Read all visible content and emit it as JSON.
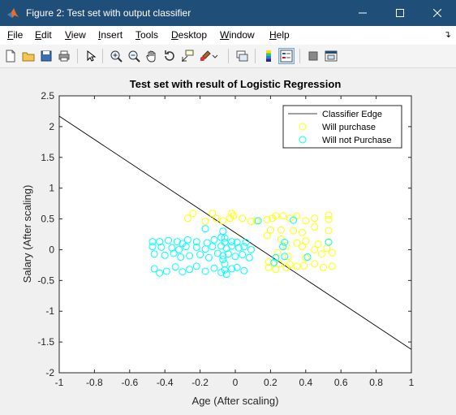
{
  "window": {
    "title": "Figure 2: Test set with output classifier",
    "controls": [
      "minimize",
      "maximize",
      "close"
    ]
  },
  "menu": [
    {
      "label": "File",
      "key": "F",
      "rest": "ile"
    },
    {
      "label": "Edit",
      "key": "E",
      "rest": "dit"
    },
    {
      "label": "View",
      "key": "V",
      "rest": "iew"
    },
    {
      "label": "Insert",
      "key": "I",
      "rest": "nsert"
    },
    {
      "label": "Tools",
      "key": "T",
      "rest": "ools"
    },
    {
      "label": "Desktop",
      "key": "D",
      "rest": "esktop"
    },
    {
      "label": "Window",
      "key": "W",
      "rest": "indow"
    },
    {
      "label": "Help",
      "key": "H",
      "rest": "elp"
    }
  ],
  "toolbar": {
    "icons": [
      "new-figure-icon",
      "open-file-icon",
      "save-icon",
      "print-icon",
      "select-arrow-icon",
      "zoom-in-icon",
      "zoom-out-icon",
      "pan-hand-icon",
      "rotate-3d-icon",
      "data-cursor-icon",
      "brush-icon",
      "link-icon",
      "colorbar-icon",
      "legend-icon",
      "hide-plot-tools-icon",
      "show-plot-tools-icon"
    ]
  },
  "colors": {
    "titlebar": "#1f4e79",
    "yellow": "#ffff00",
    "cyan": "#00ffff",
    "line": "#000000"
  },
  "chart_data": {
    "type": "scatter",
    "title": "Test set with result of Logistic Regression",
    "xlabel": "Age (After scaling)",
    "ylabel": "Salary (After scaling)",
    "xlim": [
      -1,
      1
    ],
    "ylim": [
      -2,
      2.5
    ],
    "xticks": [
      -1,
      -0.8,
      -0.6,
      -0.4,
      -0.2,
      0,
      0.2,
      0.4,
      0.6,
      0.8,
      1
    ],
    "xtick_labels": [
      "-1",
      "-0.8",
      "-0.6",
      "-0.4",
      "-0.2",
      "0",
      "0.2",
      "0.4",
      "0.6",
      "0.8",
      "1"
    ],
    "yticks": [
      -2,
      -1.5,
      -1,
      -0.5,
      0,
      0.5,
      1,
      1.5,
      2,
      2.5
    ],
    "ytick_labels": [
      "-2",
      "-1.5",
      "-1",
      "-0.5",
      "0",
      "0.5",
      "1",
      "1.5",
      "2",
      "2.5"
    ],
    "grid": false,
    "legend_position": "top-right",
    "series": [
      {
        "name": "Classifier Edge",
        "kind": "line",
        "color": "#000000",
        "x": [
          -1,
          1
        ],
        "y": [
          2.17,
          -1.62
        ]
      },
      {
        "name": "Will purchase",
        "kind": "scatter",
        "color": "#ffff00",
        "points": [
          [
            -0.27,
            0.51
          ],
          [
            -0.24,
            0.59
          ],
          [
            -0.17,
            0.46
          ],
          [
            -0.13,
            0.59
          ],
          [
            -0.11,
            0.51
          ],
          [
            -0.07,
            0.47
          ],
          [
            -0.03,
            0.51
          ],
          [
            -0.02,
            0.59
          ],
          [
            -0.01,
            0.55
          ],
          [
            0.04,
            0.51
          ],
          [
            0.09,
            0.46
          ],
          [
            0.12,
            0.47
          ],
          [
            0.18,
            0.49
          ],
          [
            0.21,
            0.51
          ],
          [
            0.23,
            0.55
          ],
          [
            0.27,
            0.55
          ],
          [
            0.31,
            0.51
          ],
          [
            0.35,
            0.55
          ],
          [
            0.4,
            0.47
          ],
          [
            0.45,
            0.51
          ],
          [
            0.53,
            0.56
          ],
          [
            0.53,
            0.49
          ],
          [
            0.2,
            0.32
          ],
          [
            0.26,
            0.32
          ],
          [
            0.33,
            0.31
          ],
          [
            0.38,
            0.28
          ],
          [
            0.45,
            0.37
          ],
          [
            0.53,
            0.31
          ],
          [
            0.18,
            0.23
          ],
          [
            0.26,
            0.17
          ],
          [
            0.35,
            0.11
          ],
          [
            0.4,
            0.14
          ],
          [
            0.47,
            0.09
          ],
          [
            0.53,
            0.13
          ],
          [
            0.29,
            0.06
          ],
          [
            0.38,
            0.05
          ],
          [
            0.45,
            0.0
          ],
          [
            0.52,
            0.02
          ],
          [
            0.24,
            -0.05
          ],
          [
            0.3,
            -0.11
          ],
          [
            0.4,
            -0.13
          ],
          [
            0.49,
            -0.07
          ],
          [
            0.55,
            -0.05
          ],
          [
            0.19,
            -0.2
          ],
          [
            0.25,
            -0.23
          ],
          [
            0.31,
            -0.24
          ],
          [
            0.39,
            -0.26
          ],
          [
            0.45,
            -0.23
          ],
          [
            0.5,
            -0.29
          ],
          [
            0.55,
            -0.27
          ],
          [
            0.19,
            -0.29
          ],
          [
            0.23,
            -0.32
          ],
          [
            0.29,
            -0.29
          ],
          [
            0.35,
            -0.27
          ]
        ]
      },
      {
        "name": "Will not Purchase",
        "kind": "scatter",
        "color": "#00ffff",
        "points": [
          [
            -0.47,
            0.13
          ],
          [
            -0.43,
            0.13
          ],
          [
            -0.38,
            0.15
          ],
          [
            -0.33,
            0.13
          ],
          [
            -0.3,
            0.1
          ],
          [
            -0.27,
            0.16
          ],
          [
            -0.22,
            0.13
          ],
          [
            -0.16,
            0.11
          ],
          [
            -0.12,
            0.16
          ],
          [
            -0.06,
            0.12
          ],
          [
            -0.02,
            0.13
          ],
          [
            0.01,
            0.12
          ],
          [
            0.06,
            0.12
          ],
          [
            -0.47,
            0.05
          ],
          [
            -0.42,
            0.04
          ],
          [
            -0.36,
            0.03
          ],
          [
            -0.32,
            0.0
          ],
          [
            -0.28,
            0.05
          ],
          [
            -0.22,
            0.04
          ],
          [
            -0.17,
            0.01
          ],
          [
            -0.13,
            0.05
          ],
          [
            -0.08,
            0.06
          ],
          [
            -0.05,
            0.02
          ],
          [
            -0.02,
            0.06
          ],
          [
            0.02,
            0.03
          ],
          [
            0.05,
            0.05
          ],
          [
            0.09,
            0.0
          ],
          [
            -0.46,
            -0.07
          ],
          [
            -0.4,
            -0.09
          ],
          [
            -0.35,
            -0.06
          ],
          [
            -0.31,
            -0.12
          ],
          [
            -0.26,
            -0.1
          ],
          [
            -0.2,
            -0.08
          ],
          [
            -0.15,
            -0.13
          ],
          [
            -0.1,
            -0.06
          ],
          [
            -0.07,
            -0.1
          ],
          [
            -0.04,
            -0.07
          ],
          [
            0.0,
            -0.11
          ],
          [
            0.04,
            -0.08
          ],
          [
            0.08,
            -0.13
          ],
          [
            -0.46,
            -0.31
          ],
          [
            -0.43,
            -0.38
          ],
          [
            -0.39,
            -0.35
          ],
          [
            -0.34,
            -0.28
          ],
          [
            -0.3,
            -0.36
          ],
          [
            -0.26,
            -0.32
          ],
          [
            -0.22,
            -0.27
          ],
          [
            -0.17,
            -0.35
          ],
          [
            -0.12,
            -0.3
          ],
          [
            -0.08,
            -0.37
          ],
          [
            -0.06,
            -0.33
          ],
          [
            -0.02,
            -0.31
          ],
          [
            0.01,
            -0.29
          ],
          [
            0.05,
            -0.34
          ],
          [
            -0.06,
            -0.23
          ],
          [
            -0.07,
            -0.16
          ],
          [
            -0.06,
            0.19
          ],
          [
            -0.07,
            0.3
          ],
          [
            -0.05,
            -0.4
          ],
          [
            -0.17,
            0.34
          ],
          [
            -0.08,
            0.2
          ],
          [
            0.13,
            0.47
          ],
          [
            0.33,
            0.48
          ],
          [
            0.23,
            -0.13
          ],
          [
            0.28,
            -0.11
          ],
          [
            0.27,
            0.05
          ],
          [
            0.28,
            0.12
          ],
          [
            0.53,
            0.12
          ],
          [
            0.41,
            -0.12
          ],
          [
            0.22,
            -0.21
          ]
        ]
      }
    ]
  }
}
